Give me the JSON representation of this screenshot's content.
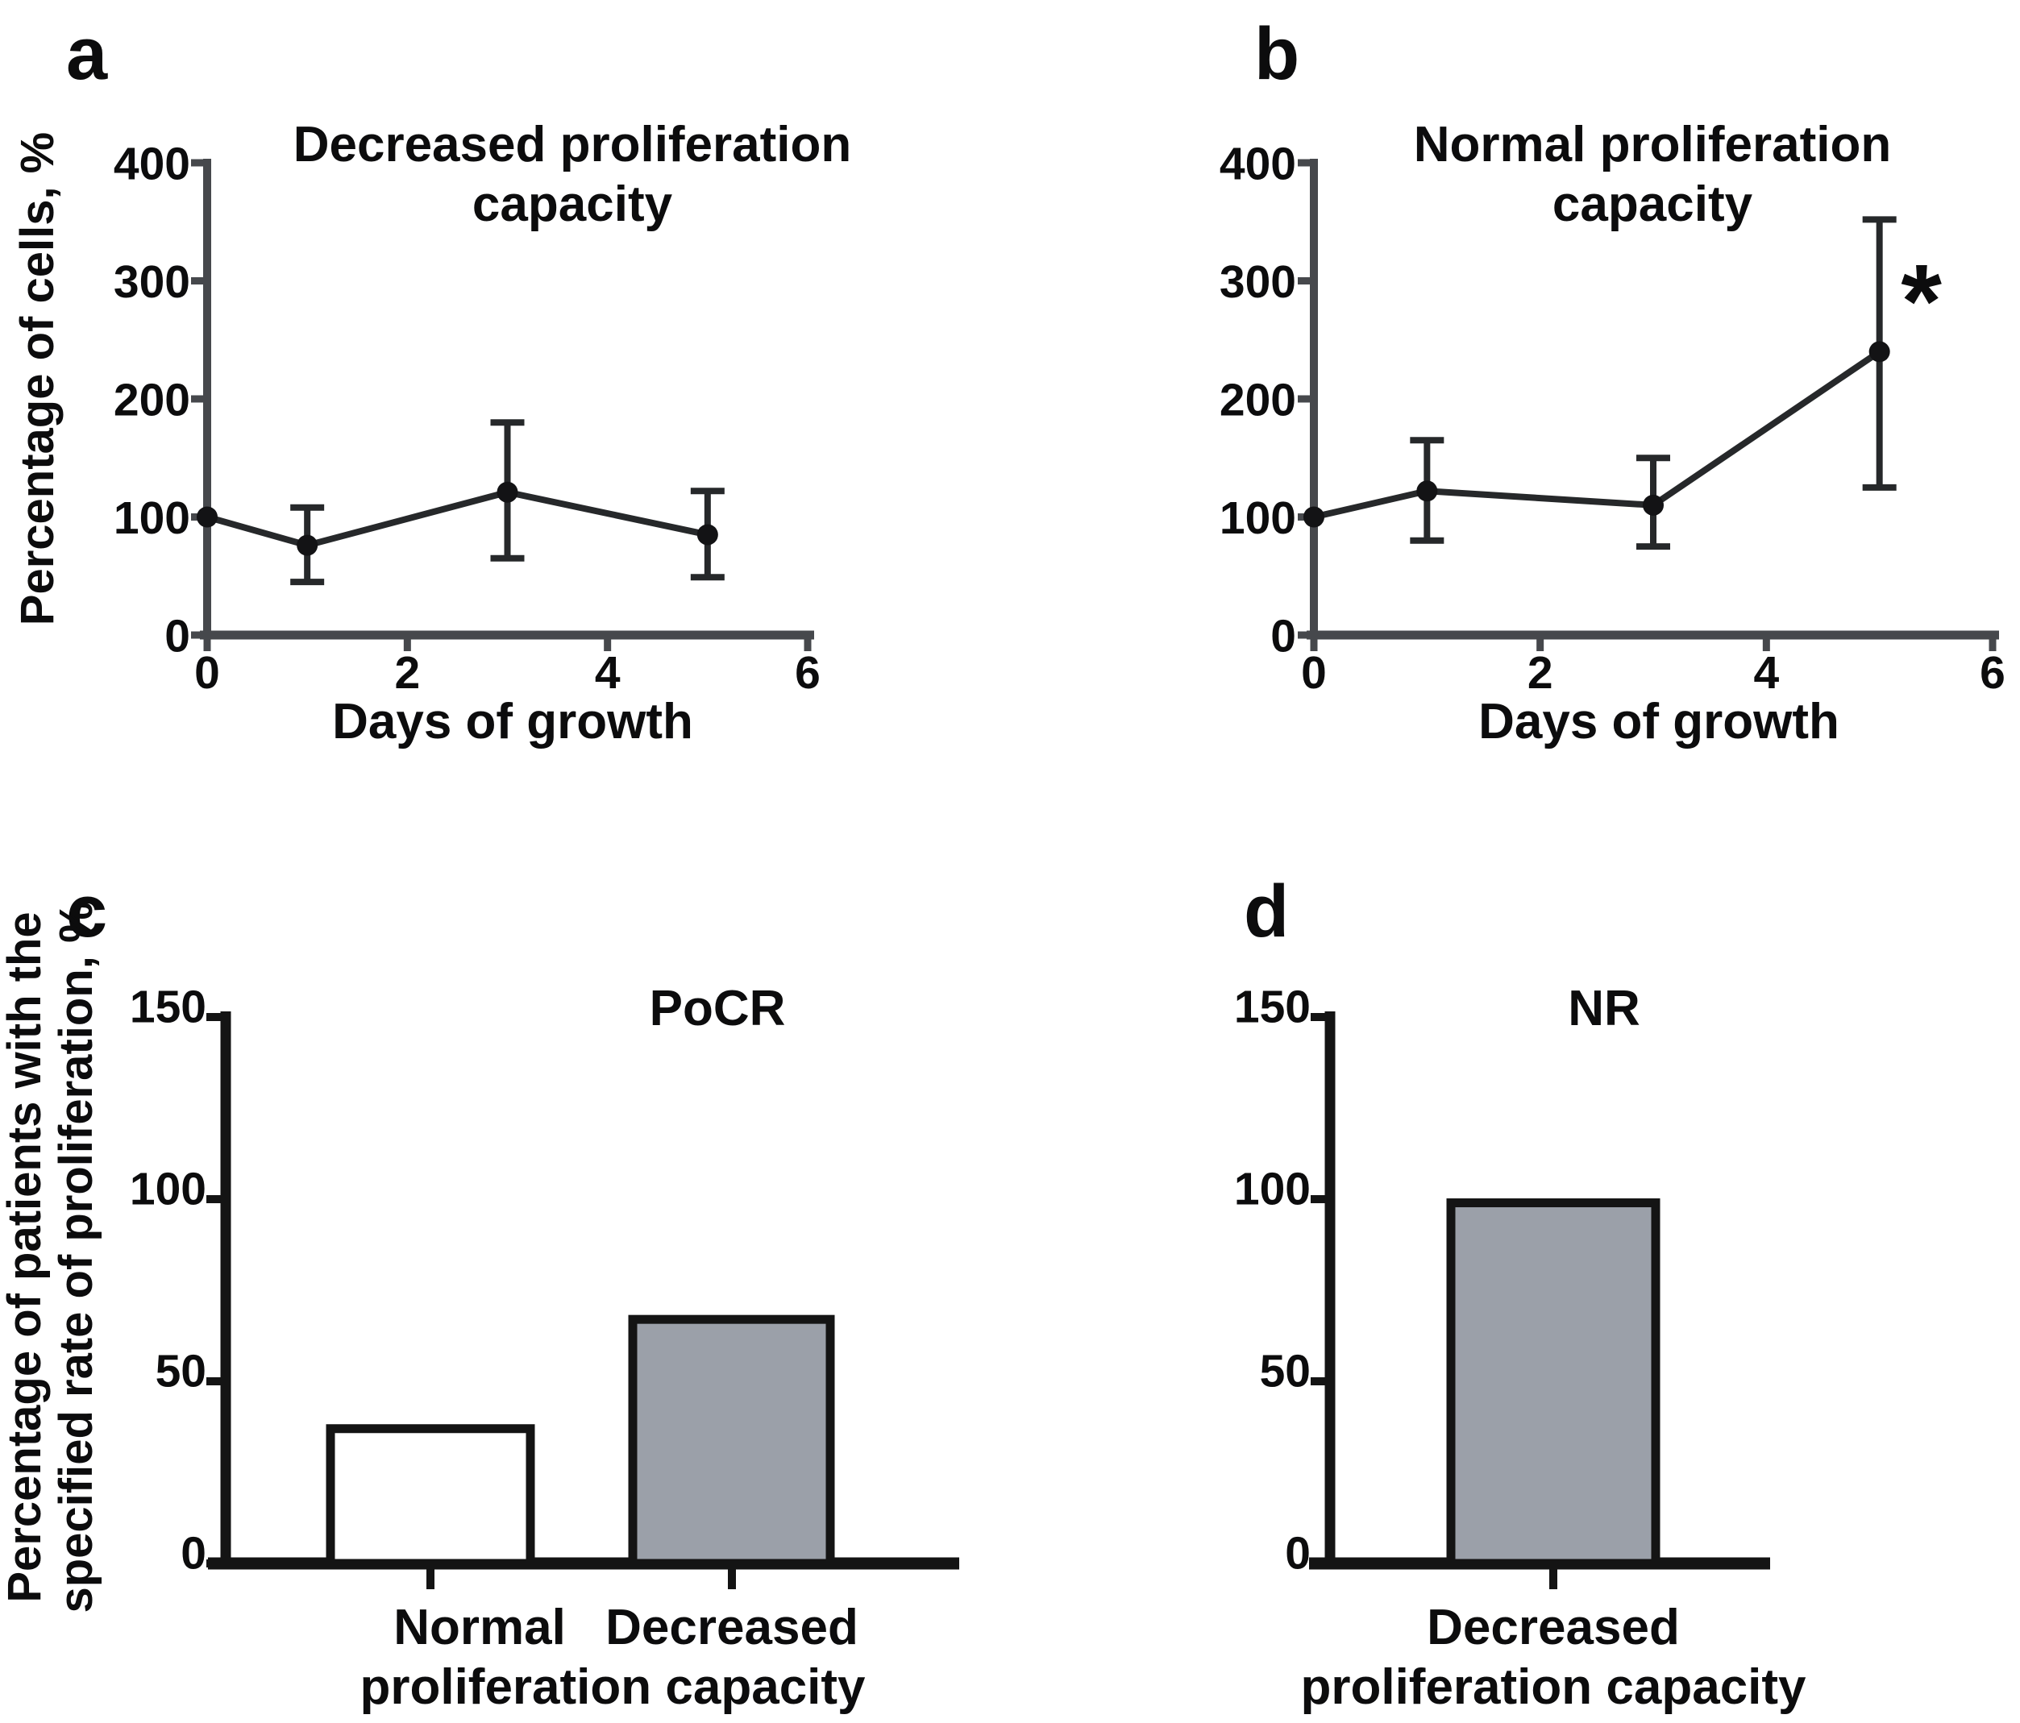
{
  "figure_kind": "four-panel scientific figure",
  "colors": {
    "background": "#ffffff",
    "top_axis": "#46484c",
    "series_line": "#26282a",
    "point_fill": "#131315",
    "bottom_axis": "#141414",
    "bar_gray_fill": "#9ba0a9",
    "bar_white_fill": "#ffffff",
    "text": "#0c0c0d"
  },
  "chart_data": [
    {
      "id": "a",
      "type": "line",
      "panel_letter": "a",
      "title_lines": [
        "Decreased proliferation",
        "capacity"
      ],
      "ylabel": "Percentage of cells, %",
      "xlabel": "Days of growth",
      "ylim": [
        0,
        400
      ],
      "yticks": [
        0,
        100,
        200,
        300,
        400
      ],
      "xlim": [
        0,
        6
      ],
      "xticks": [
        0,
        2,
        4,
        6
      ],
      "x": [
        0,
        1,
        3,
        5
      ],
      "y": [
        100,
        76,
        121,
        85
      ],
      "err_low": [
        null,
        45,
        65,
        49
      ],
      "err_high": [
        null,
        108,
        180,
        122
      ],
      "significance": null,
      "grid": false,
      "legend": "none"
    },
    {
      "id": "b",
      "type": "line",
      "panel_letter": "b",
      "title_lines": [
        "Normal proliferation",
        "capacity"
      ],
      "ylabel": null,
      "xlabel": "Days of growth",
      "ylim": [
        0,
        400
      ],
      "yticks": [
        0,
        100,
        200,
        300,
        400
      ],
      "xlim": [
        0,
        6
      ],
      "xticks": [
        0,
        2,
        4,
        6
      ],
      "x": [
        0,
        1,
        3,
        5
      ],
      "y": [
        100,
        122,
        110,
        240
      ],
      "err_low": [
        null,
        80,
        75,
        125
      ],
      "err_high": [
        null,
        165,
        150,
        352
      ],
      "significance": {
        "label": "*",
        "at_x": 5
      },
      "grid": false,
      "legend": "none"
    },
    {
      "id": "c",
      "type": "bar",
      "panel_letter": "c",
      "title": "PoCR",
      "ylabel_lines": [
        "Percentage of patients with the",
        "specified rate of proliferation, %"
      ],
      "ylim": [
        0,
        150
      ],
      "yticks": [
        0,
        50,
        100,
        150
      ],
      "categories": [
        "Normal proliferation capacity",
        "Decreased proliferation capacity"
      ],
      "category_label_lines": {
        "line1": [
          "Normal",
          "Decreased"
        ],
        "shared_line2": "proliferation capacity"
      },
      "values": [
        37,
        67
      ],
      "bar_fills": [
        "#ffffff",
        "#9ba0a9"
      ],
      "grid": false,
      "legend": "none"
    },
    {
      "id": "d",
      "type": "bar",
      "panel_letter": "d",
      "title": "NR",
      "ylabel_lines": [],
      "ylim": [
        0,
        150
      ],
      "yticks": [
        0,
        50,
        100,
        150
      ],
      "categories": [
        "Decreased proliferation capacity"
      ],
      "category_label_lines": {
        "line1": [
          "Decreased"
        ],
        "shared_line2": "proliferation capacity"
      },
      "values": [
        99
      ],
      "bar_fills": [
        "#9ba0a9"
      ],
      "grid": false,
      "legend": "none"
    }
  ]
}
